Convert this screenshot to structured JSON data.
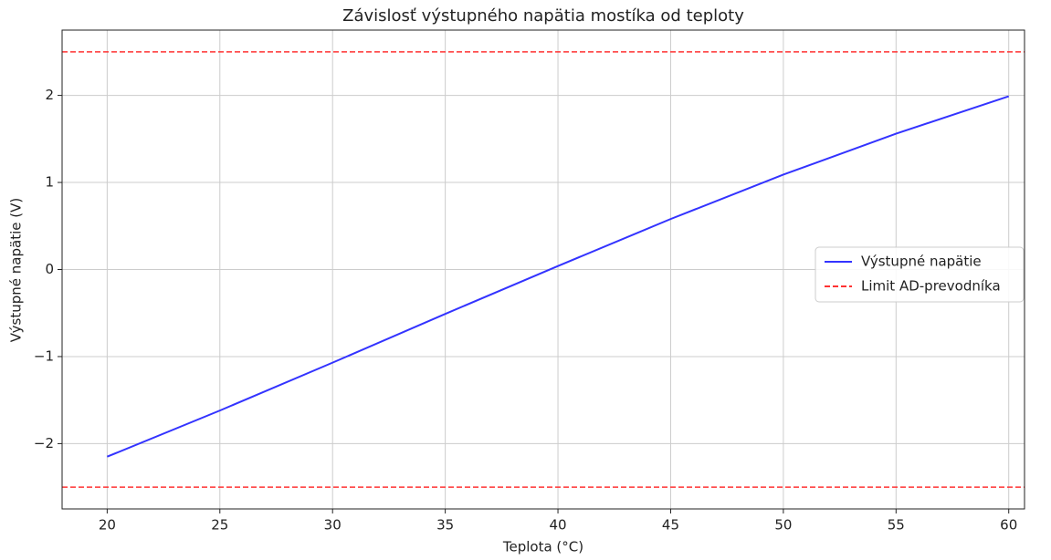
{
  "chart_data": {
    "type": "line",
    "title": "Závislosť výstupného napätia mostíka od teploty",
    "x_label": "Teplota (°C)",
    "y_label": "Výstupné napätie (V)",
    "x": [
      20,
      25,
      30,
      35,
      40,
      45,
      50,
      55,
      60
    ],
    "series": [
      {
        "name": "Výstupné napätie",
        "color": "#3333ff",
        "values": [
          -2.15,
          -1.62,
          -1.07,
          -0.51,
          0.04,
          0.58,
          1.09,
          1.56,
          1.99
        ]
      }
    ],
    "hlines": {
      "name": "Limit AD-prevodníka",
      "color": "#ff3333",
      "values": [
        2.5,
        -2.5
      ]
    },
    "xlim": [
      18,
      60.7
    ],
    "ylim": [
      -2.75,
      2.75
    ],
    "xticks": [
      20,
      25,
      30,
      35,
      40,
      45,
      50,
      55,
      60
    ],
    "yticks": [
      {
        "value": -2,
        "label": "−2"
      },
      {
        "value": -1,
        "label": "−1"
      },
      0,
      1,
      2
    ],
    "grid": true,
    "legend": "right"
  }
}
